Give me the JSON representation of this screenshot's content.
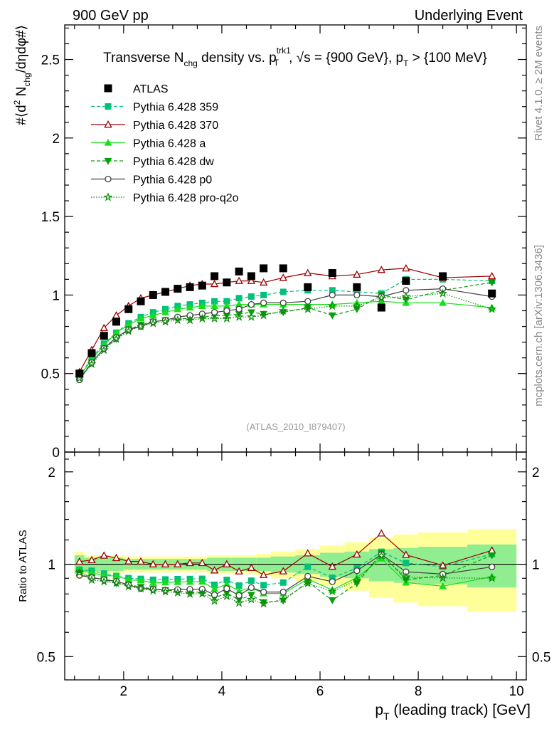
{
  "header": {
    "left": "900 GeV pp",
    "right": "Underlying Event",
    "side_top": "Rivet 4.1.0, ≥ 2M events",
    "side_bottom": "mcplots.cern.ch [arXiv:1306.3436]",
    "analysis": "(ATLAS_2010_I879407)"
  },
  "chart_data": [
    {
      "type": "line",
      "panel": "main",
      "title_parts": {
        "a": "Transverse N",
        "a_sub": "chg",
        "b": " density vs. p",
        "b_sup": "trk1",
        "b_sub": "T",
        "c": ", √s = {900 GeV}, p",
        "c_sub": "T",
        "d": " > {100 MeV}"
      },
      "ylabel_parts": {
        "a": "#⟨d",
        "a_sup": "2",
        "b": " N",
        "b_sub": "chg",
        "c": "/dηdφ#⟩"
      },
      "xlabel_parts": {
        "a": "p",
        "a_sub": "T",
        "b": " (leading track) [GeV]"
      },
      "xlim": [
        0.8,
        10.2
      ],
      "ylim": [
        0,
        2.72
      ],
      "xticks": [
        2,
        4,
        6,
        8,
        10
      ],
      "yticks": [
        0.5,
        1,
        1.5,
        2,
        2.5
      ],
      "ytick_zero_label": "0",
      "x": [
        1.1,
        1.35,
        1.6,
        1.85,
        2.1,
        2.35,
        2.6,
        2.85,
        3.1,
        3.35,
        3.6,
        3.85,
        4.1,
        4.35,
        4.6,
        4.85,
        5.25,
        5.75,
        6.25,
        6.75,
        7.25,
        7.75,
        8.5,
        9.5
      ],
      "series": [
        {
          "name": "ATLAS",
          "color": "#000000",
          "marker": "square-filled",
          "dash": "none",
          "values": [
            0.5,
            0.63,
            0.74,
            0.83,
            0.91,
            0.96,
            1.0,
            1.02,
            1.04,
            1.05,
            1.06,
            1.12,
            1.08,
            1.15,
            1.12,
            1.17,
            1.17,
            1.05,
            1.14,
            1.05,
            0.92,
            1.09,
            1.12,
            1.01
          ]
        },
        {
          "name": "Pythia 6.428 359",
          "color": "#00c07a",
          "marker": "square-filled",
          "dash": "5,3",
          "values": [
            0.48,
            0.6,
            0.69,
            0.76,
            0.82,
            0.86,
            0.89,
            0.91,
            0.93,
            0.94,
            0.95,
            0.96,
            0.96,
            0.98,
            0.99,
            1.0,
            1.02,
            1.03,
            1.03,
            1.02,
            1.01,
            1.1,
            1.1,
            1.09
          ]
        },
        {
          "name": "Pythia 6.428 370",
          "color": "#9b0000",
          "marker": "triangle-open",
          "dash": "none",
          "values": [
            0.51,
            0.65,
            0.79,
            0.87,
            0.93,
            0.98,
            1.0,
            1.02,
            1.04,
            1.06,
            1.07,
            1.07,
            1.08,
            1.09,
            1.09,
            1.08,
            1.11,
            1.14,
            1.12,
            1.13,
            1.16,
            1.17,
            1.11,
            1.12
          ]
        },
        {
          "name": "Pythia 6.428 a",
          "color": "#18e018",
          "marker": "triangle-filled",
          "dash": "none",
          "values": [
            0.48,
            0.59,
            0.68,
            0.76,
            0.81,
            0.85,
            0.87,
            0.89,
            0.91,
            0.92,
            0.93,
            0.93,
            0.93,
            0.94,
            0.94,
            0.94,
            0.94,
            0.94,
            0.94,
            0.95,
            0.96,
            0.95,
            0.95,
            0.92
          ]
        },
        {
          "name": "Pythia 6.428 dw",
          "color": "#0aa00a",
          "marker": "triangle-down-filled",
          "dash": "5,3",
          "values": [
            0.47,
            0.57,
            0.66,
            0.72,
            0.78,
            0.81,
            0.83,
            0.84,
            0.85,
            0.85,
            0.86,
            0.87,
            0.87,
            0.88,
            0.89,
            0.88,
            0.89,
            0.92,
            0.87,
            0.91,
            1.0,
            0.97,
            1.03,
            1.08
          ]
        },
        {
          "name": "Pythia 6.428 p0",
          "color": "#404040",
          "marker": "circle-open",
          "dash": "none",
          "values": [
            0.46,
            0.57,
            0.66,
            0.73,
            0.78,
            0.8,
            0.83,
            0.84,
            0.86,
            0.87,
            0.88,
            0.89,
            0.9,
            0.91,
            0.94,
            0.95,
            0.95,
            0.96,
            1.0,
            1.0,
            0.99,
            1.03,
            1.04,
            0.99
          ]
        },
        {
          "name": "Pythia 6.428 pro-q2o",
          "color": "#0a8a0a",
          "marker": "star-open",
          "dash": "1.5,2",
          "values": [
            0.47,
            0.56,
            0.65,
            0.72,
            0.77,
            0.8,
            0.82,
            0.83,
            0.84,
            0.84,
            0.85,
            0.85,
            0.85,
            0.86,
            0.86,
            0.87,
            0.9,
            0.91,
            0.93,
            0.93,
            0.98,
            0.99,
            1.01,
            0.91
          ]
        }
      ]
    },
    {
      "type": "line",
      "panel": "ratio",
      "ylabel": "Ratio to ATLAS",
      "xlim": [
        0.8,
        10.2
      ],
      "yscale": "log",
      "ylim": [
        0.42,
        2.32
      ],
      "yticks": [
        0.5,
        1,
        2
      ],
      "ytick_labels": [
        "0.5",
        "1",
        "2"
      ],
      "x_edges": [
        1.0,
        1.2,
        1.5,
        1.7,
        2.0,
        2.2,
        2.5,
        2.7,
        3.0,
        3.2,
        3.5,
        3.7,
        4.0,
        4.2,
        4.5,
        4.7,
        5.0,
        5.5,
        6.0,
        6.5,
        7.0,
        7.5,
        8.0,
        9.0,
        10.0
      ],
      "band_inner": [
        0.07,
        0.05,
        0.05,
        0.05,
        0.04,
        0.04,
        0.04,
        0.04,
        0.04,
        0.04,
        0.04,
        0.05,
        0.05,
        0.05,
        0.05,
        0.05,
        0.06,
        0.07,
        0.09,
        0.1,
        0.12,
        0.13,
        0.14,
        0.16
      ],
      "band_outer": [
        0.1,
        0.07,
        0.07,
        0.07,
        0.06,
        0.06,
        0.06,
        0.06,
        0.06,
        0.06,
        0.06,
        0.07,
        0.07,
        0.07,
        0.07,
        0.08,
        0.1,
        0.12,
        0.15,
        0.18,
        0.22,
        0.25,
        0.27,
        0.3
      ],
      "band_inner_color": "#90ee90",
      "band_outer_color": "#ffff99",
      "reference_value": 1
    }
  ]
}
